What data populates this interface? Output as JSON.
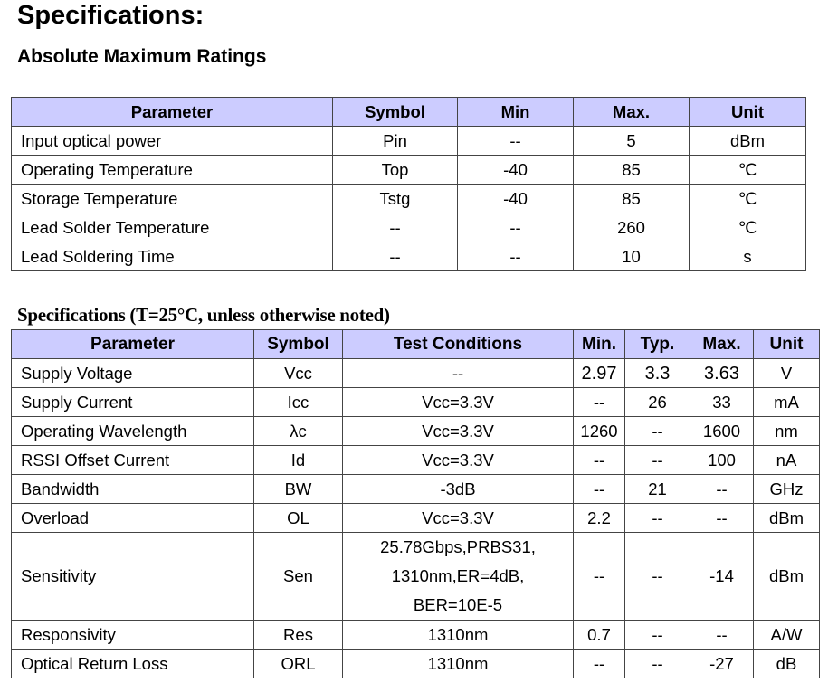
{
  "title": "Specifications:",
  "abs_max": {
    "heading": "Absolute Maximum Ratings",
    "headers": [
      "Parameter",
      "Symbol",
      "Min",
      "Max.",
      "Unit"
    ],
    "rows": [
      [
        "Input optical power",
        "Pin",
        "--",
        "5",
        "dBm"
      ],
      [
        "Operating Temperature",
        "Top",
        "-40",
        "85",
        "℃"
      ],
      [
        "Storage Temperature",
        "Tstg",
        "-40",
        "85",
        "℃"
      ],
      [
        "Lead Solder Temperature",
        "--",
        "--",
        "260",
        "℃"
      ],
      [
        "Lead Soldering Time",
        "--",
        "--",
        "10",
        "s"
      ]
    ]
  },
  "specs": {
    "heading": "Specifications (T=25°C, unless otherwise noted)",
    "headers": [
      "Parameter",
      "Symbol",
      "Test Conditions",
      "Min.",
      "Typ.",
      "Max.",
      "Unit"
    ],
    "rows": [
      [
        "Supply Voltage",
        "Vcc",
        "--",
        "2.97",
        "3.3",
        "3.63",
        "V"
      ],
      [
        "Supply Current",
        "Icc",
        "Vcc=3.3V",
        "--",
        "26",
        "33",
        "mA"
      ],
      [
        "Operating Wavelength",
        "λc",
        "Vcc=3.3V",
        "1260",
        "--",
        "1600",
        "nm"
      ],
      [
        "RSSI Offset Current",
        "Id",
        "Vcc=3.3V",
        "--",
        "--",
        "100",
        "nA"
      ],
      [
        "Bandwidth",
        "BW",
        "-3dB",
        "--",
        "21",
        "--",
        "GHz"
      ],
      [
        "Overload",
        "OL",
        "Vcc=3.3V",
        "2.2",
        "--",
        "--",
        "dBm"
      ],
      [
        "Sensitivity",
        "Sen",
        [
          "25.78Gbps,PRBS31,",
          "1310nm,ER=4dB,",
          "BER=10E-5"
        ],
        "--",
        "--",
        "-14",
        "dBm"
      ],
      [
        "Responsivity",
        "Res",
        "1310nm",
        "0.7",
        "--",
        "--",
        "A/W"
      ],
      [
        "Optical Return Loss",
        "ORL",
        "1310nm",
        "--",
        "--",
        "-27",
        "dB"
      ]
    ]
  },
  "header_color": "#ccccff"
}
